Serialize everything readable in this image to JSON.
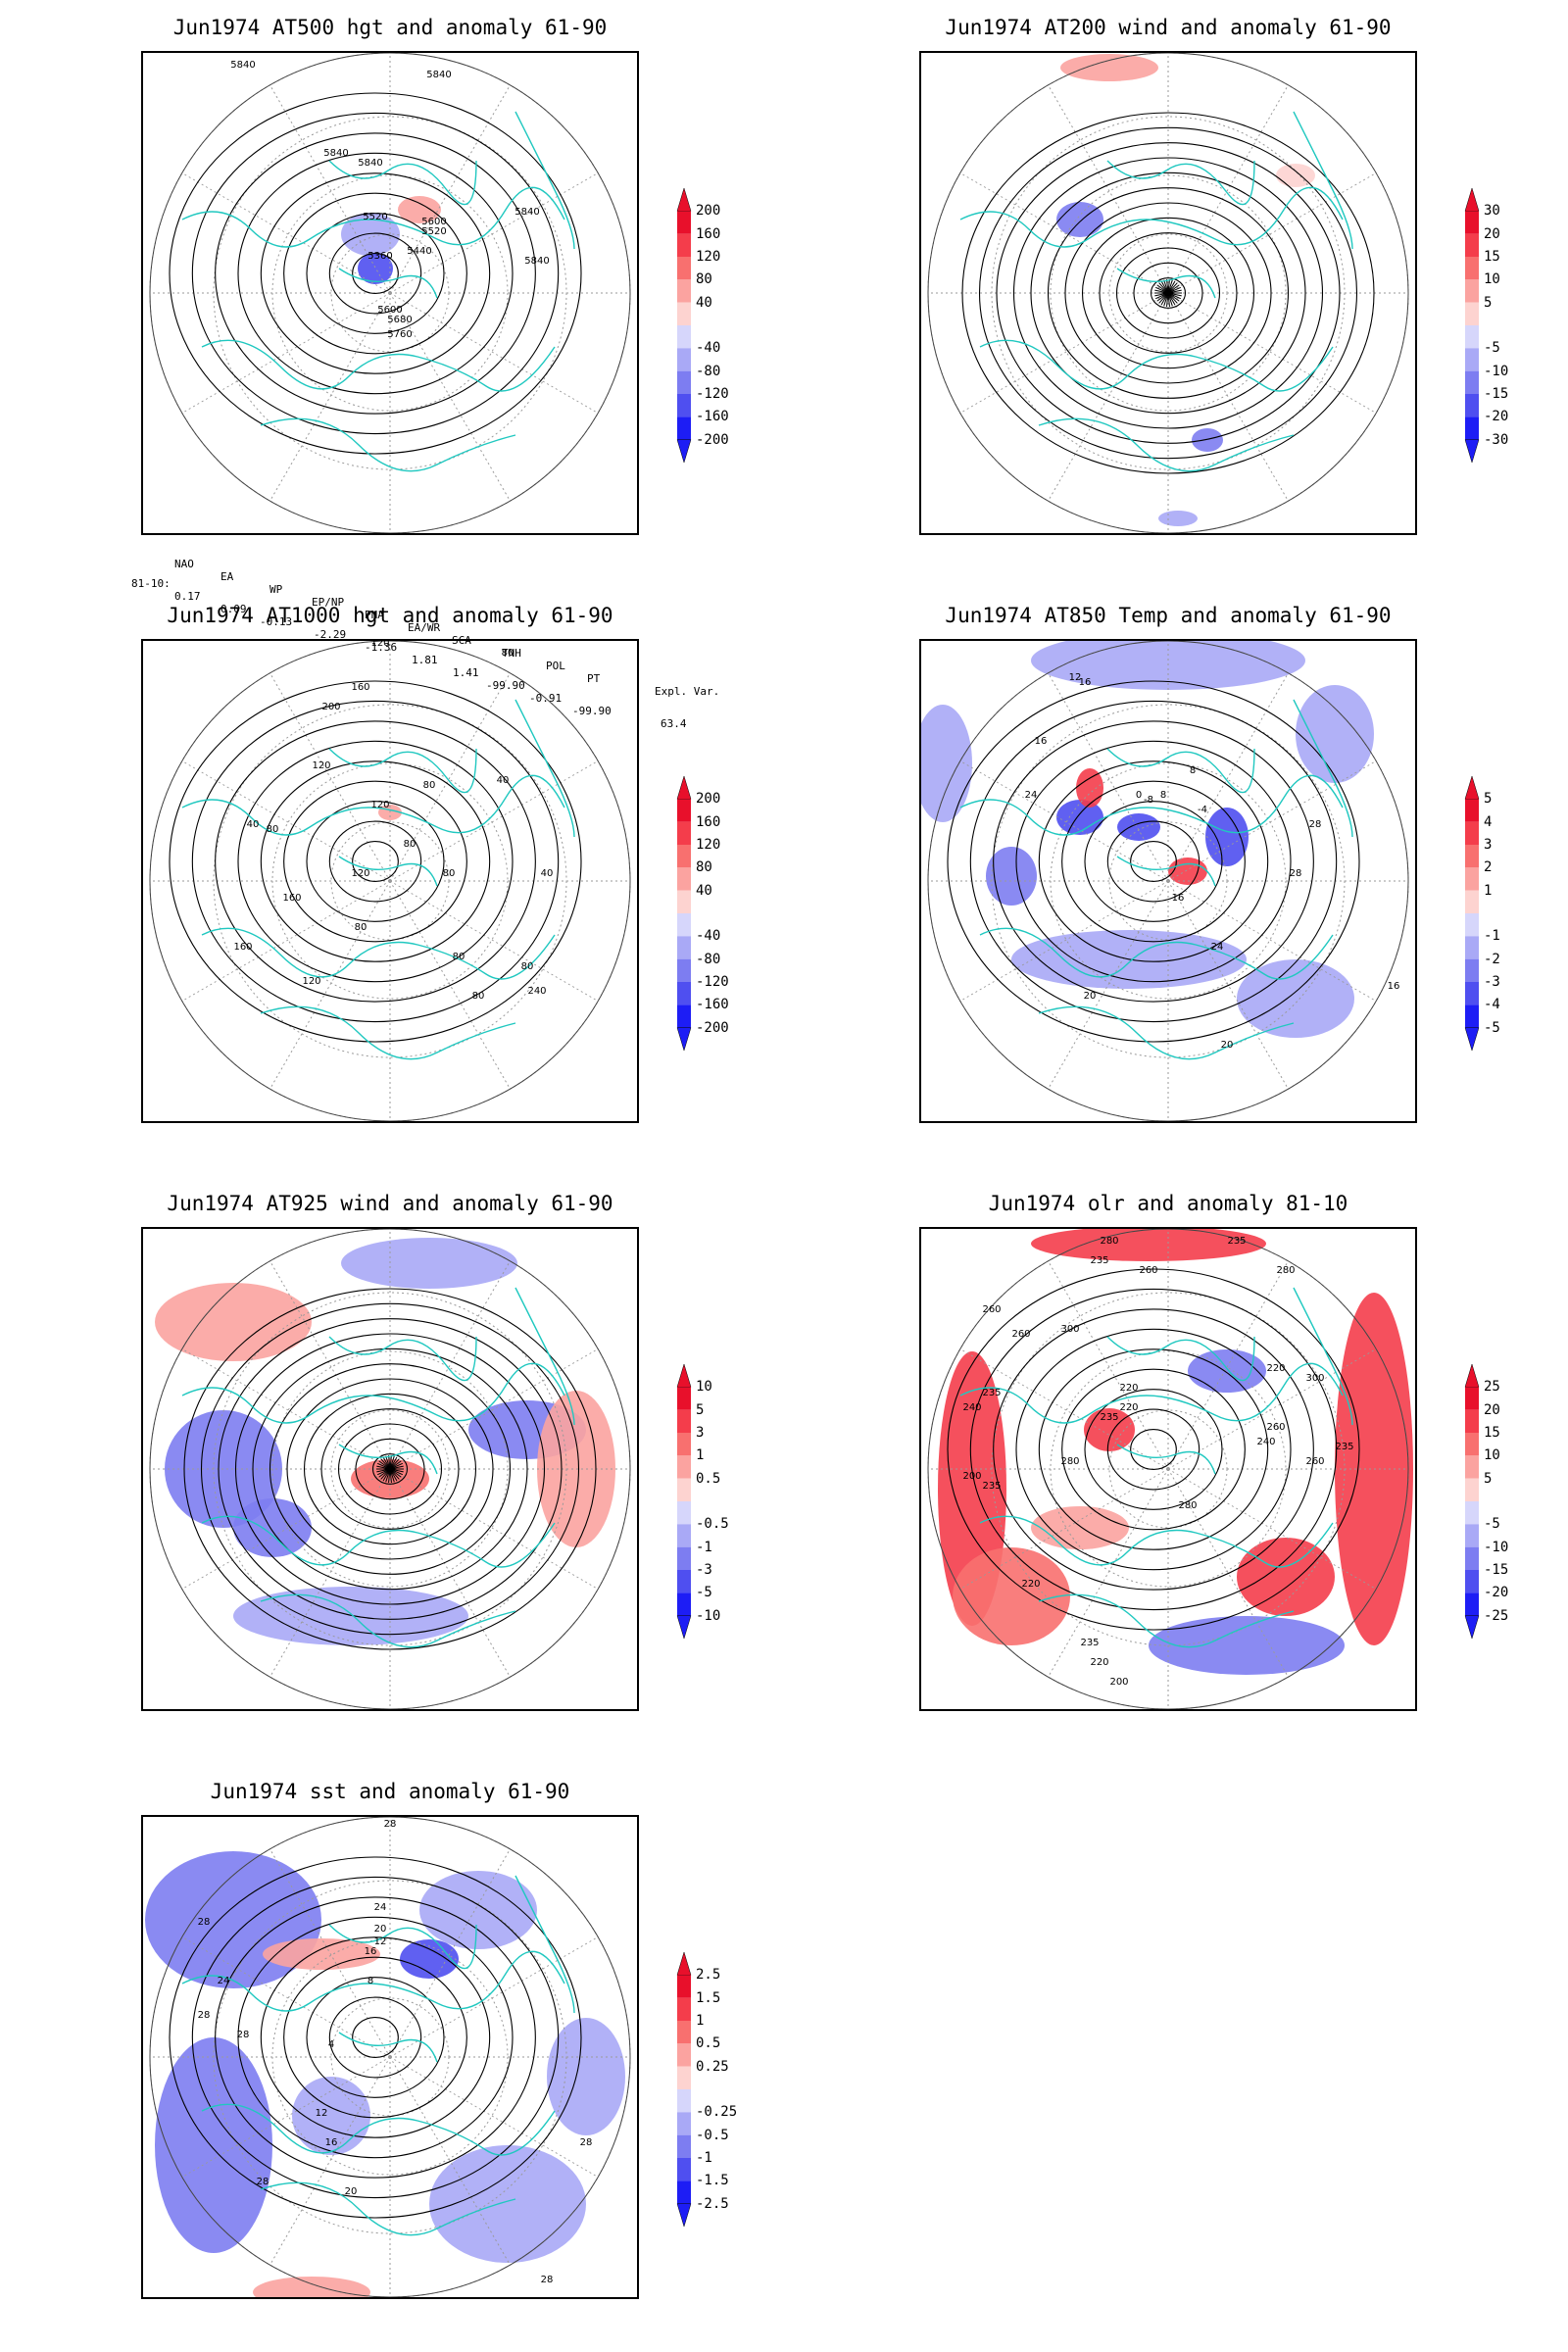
{
  "panels": [
    {
      "id": "p1",
      "title": "Jun1974 AT500 hgt and anomaly 61-90",
      "colorbar": [
        "200",
        "160",
        "120",
        "80",
        "40",
        "-40",
        "-80",
        "-120",
        "-160",
        "-200"
      ],
      "contour_labels": [
        "5840",
        "5840",
        "5840",
        "5840",
        "5840",
        "5840",
        "5520",
        "5600",
        "5520",
        "5360",
        "5440",
        "5600",
        "5680",
        "5760"
      ]
    },
    {
      "id": "p2",
      "title": "Jun1974 AT200 wind and anomaly 61-90",
      "colorbar": [
        "30",
        "20",
        "15",
        "10",
        "5",
        "-5",
        "-10",
        "-15",
        "-20",
        "-30"
      ],
      "contour_labels": []
    },
    {
      "id": "p3",
      "title": "Jun1974 AT1000 hgt and anomaly 61-90",
      "colorbar": [
        "200",
        "160",
        "120",
        "80",
        "40",
        "-40",
        "-80",
        "-120",
        "-160",
        "-200"
      ],
      "contour_labels": [
        "120",
        "160",
        "200",
        "80",
        "120",
        "80",
        "40",
        "40",
        "80",
        "80",
        "160",
        "120",
        "80",
        "40",
        "80",
        "160",
        "120",
        "120",
        "80",
        "80",
        "240",
        "80"
      ]
    },
    {
      "id": "p4",
      "title": "Jun1974 AT850 Temp and anomaly 61-90",
      "colorbar": [
        "5",
        "4",
        "3",
        "2",
        "1",
        "-1",
        "-2",
        "-3",
        "-4",
        "-5"
      ],
      "contour_labels": [
        "16",
        "12",
        "16",
        "24",
        "8",
        "-8",
        "-4",
        "0",
        "8",
        "28",
        "28",
        "16",
        "20",
        "24",
        "16",
        "20"
      ]
    },
    {
      "id": "p5",
      "title": "Jun1974 AT925 wind and anomaly 61-90",
      "colorbar": [
        "10",
        "5",
        "3",
        "1",
        "0.5",
        "-0.5",
        "-1",
        "-3",
        "-5",
        "-10"
      ],
      "contour_labels": []
    },
    {
      "id": "p6",
      "title": "Jun1974 olr and anomaly 81-10",
      "colorbar": [
        "25",
        "20",
        "15",
        "10",
        "5",
        "-5",
        "-10",
        "-15",
        "-20",
        "-25"
      ],
      "contour_labels": [
        "280",
        "260",
        "235",
        "235",
        "260",
        "220",
        "240",
        "235",
        "300",
        "220",
        "235",
        "260",
        "280",
        "235",
        "220",
        "200",
        "280",
        "260",
        "300",
        "235",
        "220",
        "200",
        "280",
        "220",
        "235",
        "240",
        "260"
      ]
    },
    {
      "id": "p7",
      "title": "Jun1974 sst and anomaly 61-90",
      "colorbar": [
        "2.5",
        "1.5",
        "1",
        "0.5",
        "0.25",
        "-0.25",
        "-0.5",
        "-1",
        "-1.5",
        "-2.5"
      ],
      "contour_labels": [
        "28",
        "24",
        "20",
        "16",
        "12",
        "8",
        "28",
        "24",
        "28",
        "4",
        "12",
        "16",
        "20",
        "28",
        "28",
        "28",
        "28"
      ]
    }
  ],
  "indices": {
    "header": [
      "NAO",
      "EA",
      "WP",
      "EP/NP",
      "PNA",
      "EA/WR",
      "SCA",
      "TNH",
      "POL",
      "PT",
      "Expl. Var."
    ],
    "row_label": "81-10:",
    "values": [
      "0.17",
      "0.09",
      "-0.13",
      "-2.29",
      "-1.36",
      "1.81",
      "1.41",
      "-99.90",
      "-0.91",
      "-99.90",
      "63.4"
    ]
  },
  "colors": {
    "red_scale": [
      "#e8102b",
      "#f43d4b",
      "#f8706f",
      "#fba3a0",
      "#fdd3d0"
    ],
    "blue_scale": [
      "#d6d6fb",
      "#a9a9f6",
      "#7d7df1",
      "#4f4ff0",
      "#1d1df5"
    ],
    "coastline": "#20c8c0"
  }
}
